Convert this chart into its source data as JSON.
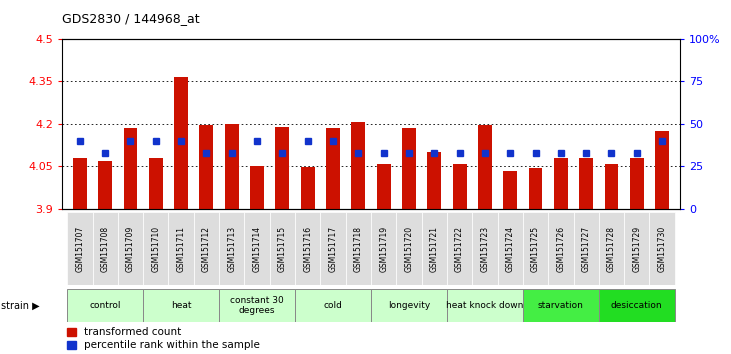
{
  "title": "GDS2830 / 144968_at",
  "samples": [
    "GSM151707",
    "GSM151708",
    "GSM151709",
    "GSM151710",
    "GSM151711",
    "GSM151712",
    "GSM151713",
    "GSM151714",
    "GSM151715",
    "GSM151716",
    "GSM151717",
    "GSM151718",
    "GSM151719",
    "GSM151720",
    "GSM151721",
    "GSM151722",
    "GSM151723",
    "GSM151724",
    "GSM151725",
    "GSM151726",
    "GSM151727",
    "GSM151728",
    "GSM151729",
    "GSM151730"
  ],
  "transformed_counts": [
    4.08,
    4.07,
    4.185,
    4.08,
    4.365,
    4.195,
    4.2,
    4.05,
    4.19,
    4.047,
    4.185,
    4.205,
    4.06,
    4.185,
    4.1,
    4.06,
    4.195,
    4.035,
    4.045,
    4.08,
    4.08,
    4.06,
    4.08,
    4.175
  ],
  "percentile_ranks": [
    40,
    33,
    40,
    40,
    40,
    33,
    33,
    40,
    33,
    40,
    40,
    33,
    33,
    33,
    33,
    33,
    33,
    33,
    33,
    33,
    33,
    33,
    33,
    40
  ],
  "groups": [
    {
      "label": "control",
      "start": 0,
      "end": 2,
      "color": "#ccffcc"
    },
    {
      "label": "heat",
      "start": 3,
      "end": 5,
      "color": "#ccffcc"
    },
    {
      "label": "constant 30\ndegrees",
      "start": 6,
      "end": 8,
      "color": "#ccffcc"
    },
    {
      "label": "cold",
      "start": 9,
      "end": 11,
      "color": "#ccffcc"
    },
    {
      "label": "longevity",
      "start": 12,
      "end": 14,
      "color": "#ccffcc"
    },
    {
      "label": "heat knock down",
      "start": 15,
      "end": 17,
      "color": "#ccffcc"
    },
    {
      "label": "starvation",
      "start": 18,
      "end": 20,
      "color": "#44ee44"
    },
    {
      "label": "desiccation",
      "start": 21,
      "end": 23,
      "color": "#22dd22"
    }
  ],
  "bar_color": "#cc1100",
  "dot_color": "#1133cc",
  "ylim_left": [
    3.9,
    4.5
  ],
  "yticks_left": [
    3.9,
    4.05,
    4.2,
    4.35,
    4.5
  ],
  "ytick_labels_left": [
    "3.9",
    "4.05",
    "4.2",
    "4.35",
    "4.5"
  ],
  "ylim_right": [
    0,
    100
  ],
  "yticks_right": [
    0,
    25,
    50,
    75,
    100
  ],
  "ytick_labels_right": [
    "0",
    "25",
    "50",
    "75",
    "100%"
  ],
  "bar_width": 0.55,
  "background_color": "#ffffff",
  "plot_bg_color": "#ffffff",
  "legend_items": [
    "transformed count",
    "percentile rank within the sample"
  ],
  "strain_label": "strain ▶",
  "sample_box_color": "#dddddd",
  "sep_color": "#333333",
  "group_border_color": "#888888"
}
